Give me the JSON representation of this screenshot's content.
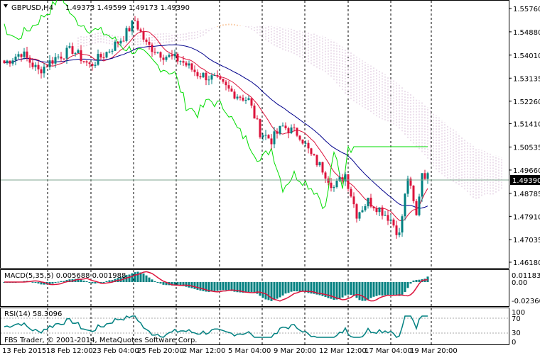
{
  "chart_data": [
    {
      "type": "candlestick",
      "symbol_label": "GBPUSD,H4",
      "ohlc_label": "1.49373 1.49599 1.49173 1.49390",
      "current_price": 1.4939,
      "current_price_label": "1.49390",
      "y_ticks": [
        1.5576,
        1.5488,
        1.54,
        1.5313,
        1.5226,
        1.5141,
        1.5053,
        1.4966,
        1.4878,
        1.4791,
        1.4703,
        1.4618
      ],
      "y_tick_labels": [
        "1.55760",
        "1.54880",
        "1.54010",
        "1.53135",
        "1.52260",
        "1.51410",
        "1.50535",
        "1.49660",
        "1.48785",
        "1.47910",
        "1.47035",
        "1.46180"
      ],
      "x_tick_labels": [
        "13 Feb 2015",
        "18 Feb 12:00",
        "23 Feb 04:00",
        "25 Feb 20:00",
        "2 Mar 12:00",
        "5 Mar 04:00",
        "9 Mar 20:00",
        "12 Mar 12:00",
        "17 Mar 04:00",
        "19 Mar 20:00"
      ],
      "indicators": [
        "Ichimoku Kinko Hyo"
      ],
      "colors": {
        "bull": "#008080",
        "bear": "#dc143c",
        "tenkan": "#dc143c",
        "kijun": "#00008b",
        "chikou": "#00dd00",
        "span_a": "#f4a460",
        "span_b": "#d8bfd8",
        "price_line": "#7fa68f"
      }
    },
    {
      "type": "histogram",
      "label": "MACD(5,35,5) 0.005688 0.001988",
      "y_tick_labels": [
        "0.011833",
        "0.00",
        "-0.023608"
      ],
      "colors": {
        "hist": "#008080",
        "signal": "#dc143c"
      }
    },
    {
      "type": "line",
      "label": "RSI(14) 58.3096",
      "y_tick_labels": [
        "100",
        "70",
        "30",
        "0"
      ],
      "levels": [
        70,
        30
      ],
      "colors": {
        "line": "#008080"
      }
    }
  ],
  "footer": {
    "copyright": "FBS Trader, © 2001-2014, MetaQuotes Software Corp."
  }
}
